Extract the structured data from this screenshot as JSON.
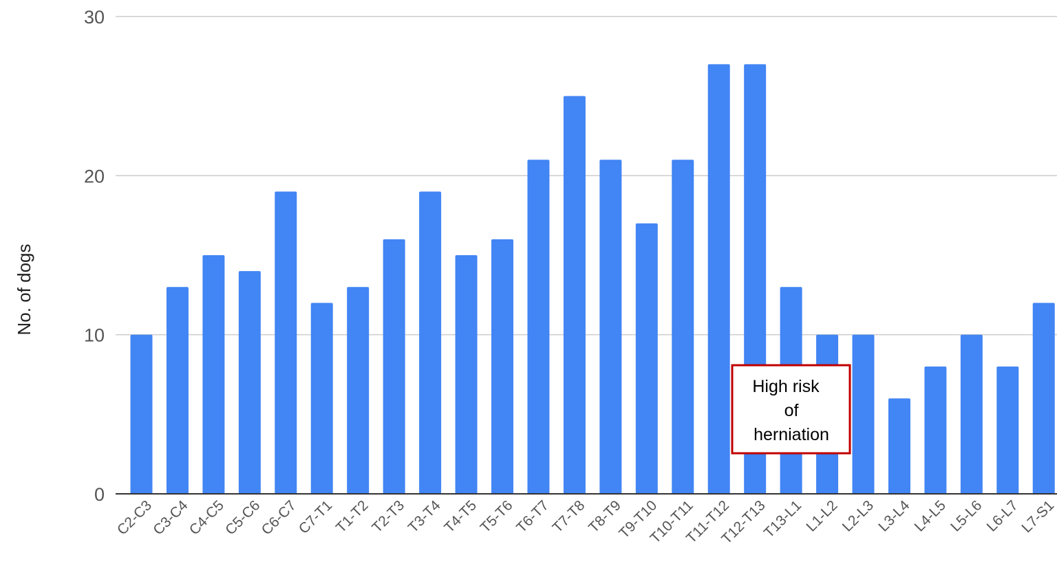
{
  "chart_data": {
    "type": "bar",
    "title": "",
    "xlabel": "",
    "ylabel": "No. of dogs",
    "ylim": [
      0,
      30
    ],
    "yticks": [
      0,
      10,
      20,
      30
    ],
    "grid": true,
    "bar_color": "#4285F4",
    "categories": [
      "C2-C3",
      "C3-C4",
      "C4-C5",
      "C5-C6",
      "C6-C7",
      "C7-T1",
      "T1-T2",
      "T2-T3",
      "T3-T4",
      "T4-T5",
      "T5-T6",
      "T6-T7",
      "T7-T8",
      "T8-T9",
      "T9-T10",
      "T10-T11",
      "T11-T12",
      "T12-T13",
      "T13-L1",
      "L1-L2",
      "L2-L3",
      "L3-L4",
      "L4-L5",
      "L5-L6",
      "L6-L7",
      "L7-S1"
    ],
    "values": [
      10,
      13,
      15,
      14,
      19,
      12,
      13,
      16,
      19,
      15,
      16,
      21,
      25,
      21,
      17,
      21,
      27,
      27,
      13,
      10,
      10,
      6,
      8,
      10,
      8,
      12
    ],
    "annotation": {
      "lines": [
        "High risk",
        "of",
        "herniation"
      ],
      "border_color": "#C00000"
    }
  }
}
